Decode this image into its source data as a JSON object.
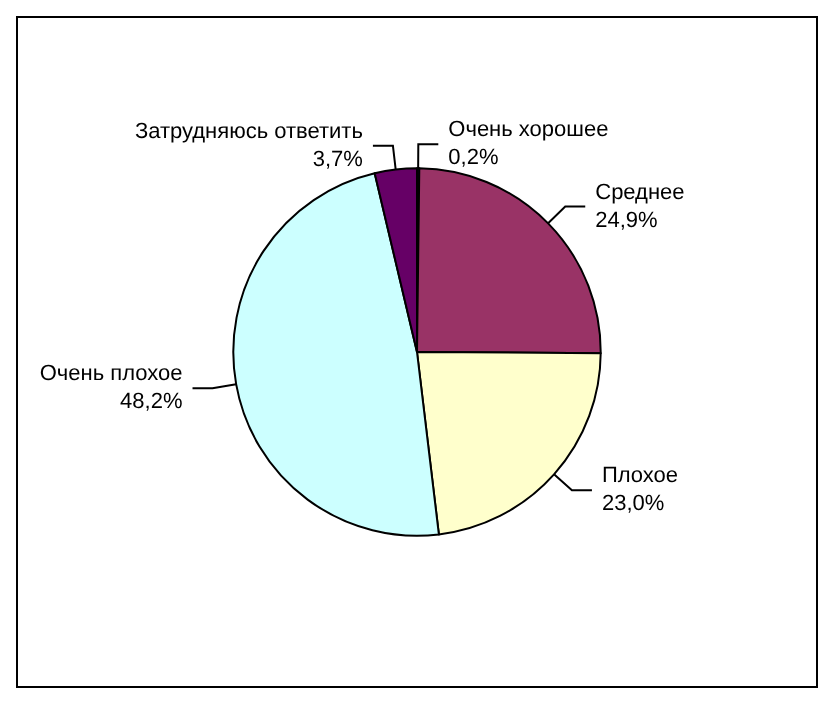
{
  "chart_data": {
    "type": "pie",
    "categories": [
      "Очень хорошее",
      "Среднее",
      "Плохое",
      "Очень плохое",
      "Затрудняюсь ответить"
    ],
    "values": [
      0.2,
      24.9,
      23.0,
      48.2,
      3.7
    ],
    "colors": [
      "#000080",
      "#993366",
      "#ffffcc",
      "#ccffff",
      "#660066"
    ],
    "value_labels": [
      "0,2%",
      "24,9%",
      "23,0%",
      "48,2%",
      "3,7%"
    ]
  }
}
